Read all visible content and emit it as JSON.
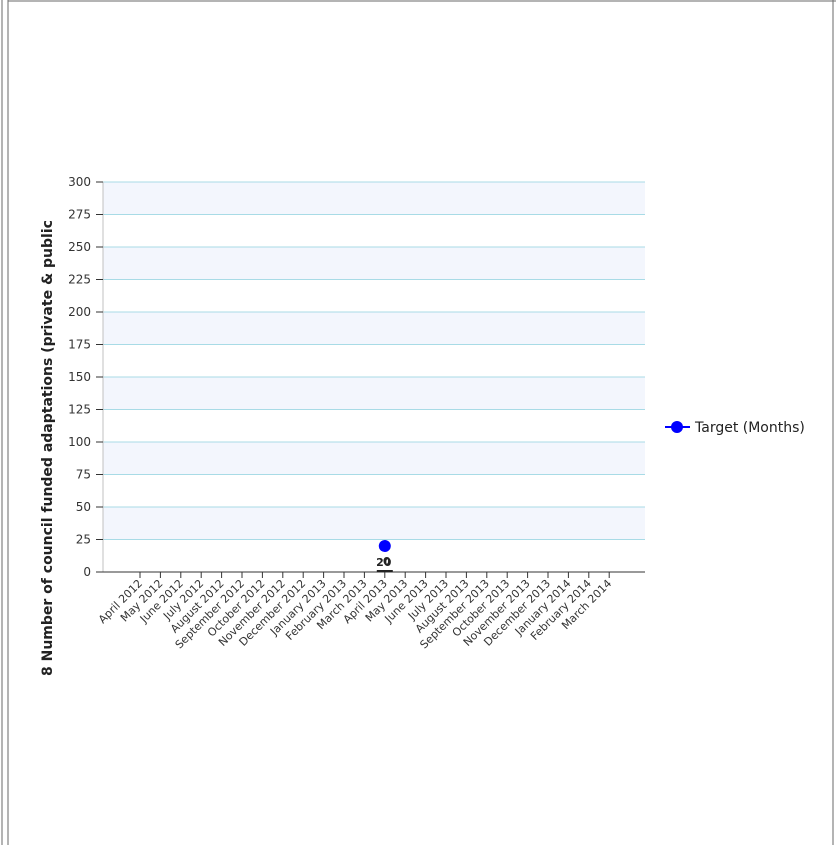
{
  "chart_data": {
    "type": "line",
    "title": "",
    "xlabel": "",
    "ylabel": "8 Number of council funded adaptations (private & public",
    "ylim": [
      0,
      300
    ],
    "y_ticks": [
      "0",
      "25",
      "50",
      "75",
      "100",
      "125",
      "150",
      "175",
      "200",
      "225",
      "250",
      "275",
      "300"
    ],
    "categories": [
      "April 2012",
      "May 2012",
      "June 2012",
      "July 2012",
      "August 2012",
      "September 2012",
      "October 2012",
      "November 2012",
      "December 2012",
      "January 2013",
      "February 2013",
      "March 2013",
      "April 2013",
      "May 2013",
      "June 2013",
      "July 2013",
      "August 2013",
      "September 2013",
      "October 2013",
      "November 2013",
      "December 2013",
      "January 2014",
      "February 2014",
      "March 2014"
    ],
    "series": [
      {
        "name": "Target (Months)",
        "color": "#0000ff",
        "values": [
          null,
          null,
          null,
          null,
          null,
          null,
          null,
          null,
          null,
          null,
          null,
          null,
          20,
          null,
          null,
          null,
          null,
          null,
          null,
          null,
          null,
          null,
          null,
          null
        ],
        "data_labels": [
          "20"
        ]
      },
      {
        "name": "",
        "color": "#222222",
        "values": [
          null,
          null,
          null,
          null,
          null,
          null,
          null,
          null,
          null,
          null,
          null,
          null,
          0,
          null,
          null,
          null,
          null,
          null,
          null,
          null,
          null,
          null,
          null,
          null
        ],
        "data_labels": [
          "0"
        ]
      }
    ],
    "grid": true,
    "legend_position": "right"
  }
}
